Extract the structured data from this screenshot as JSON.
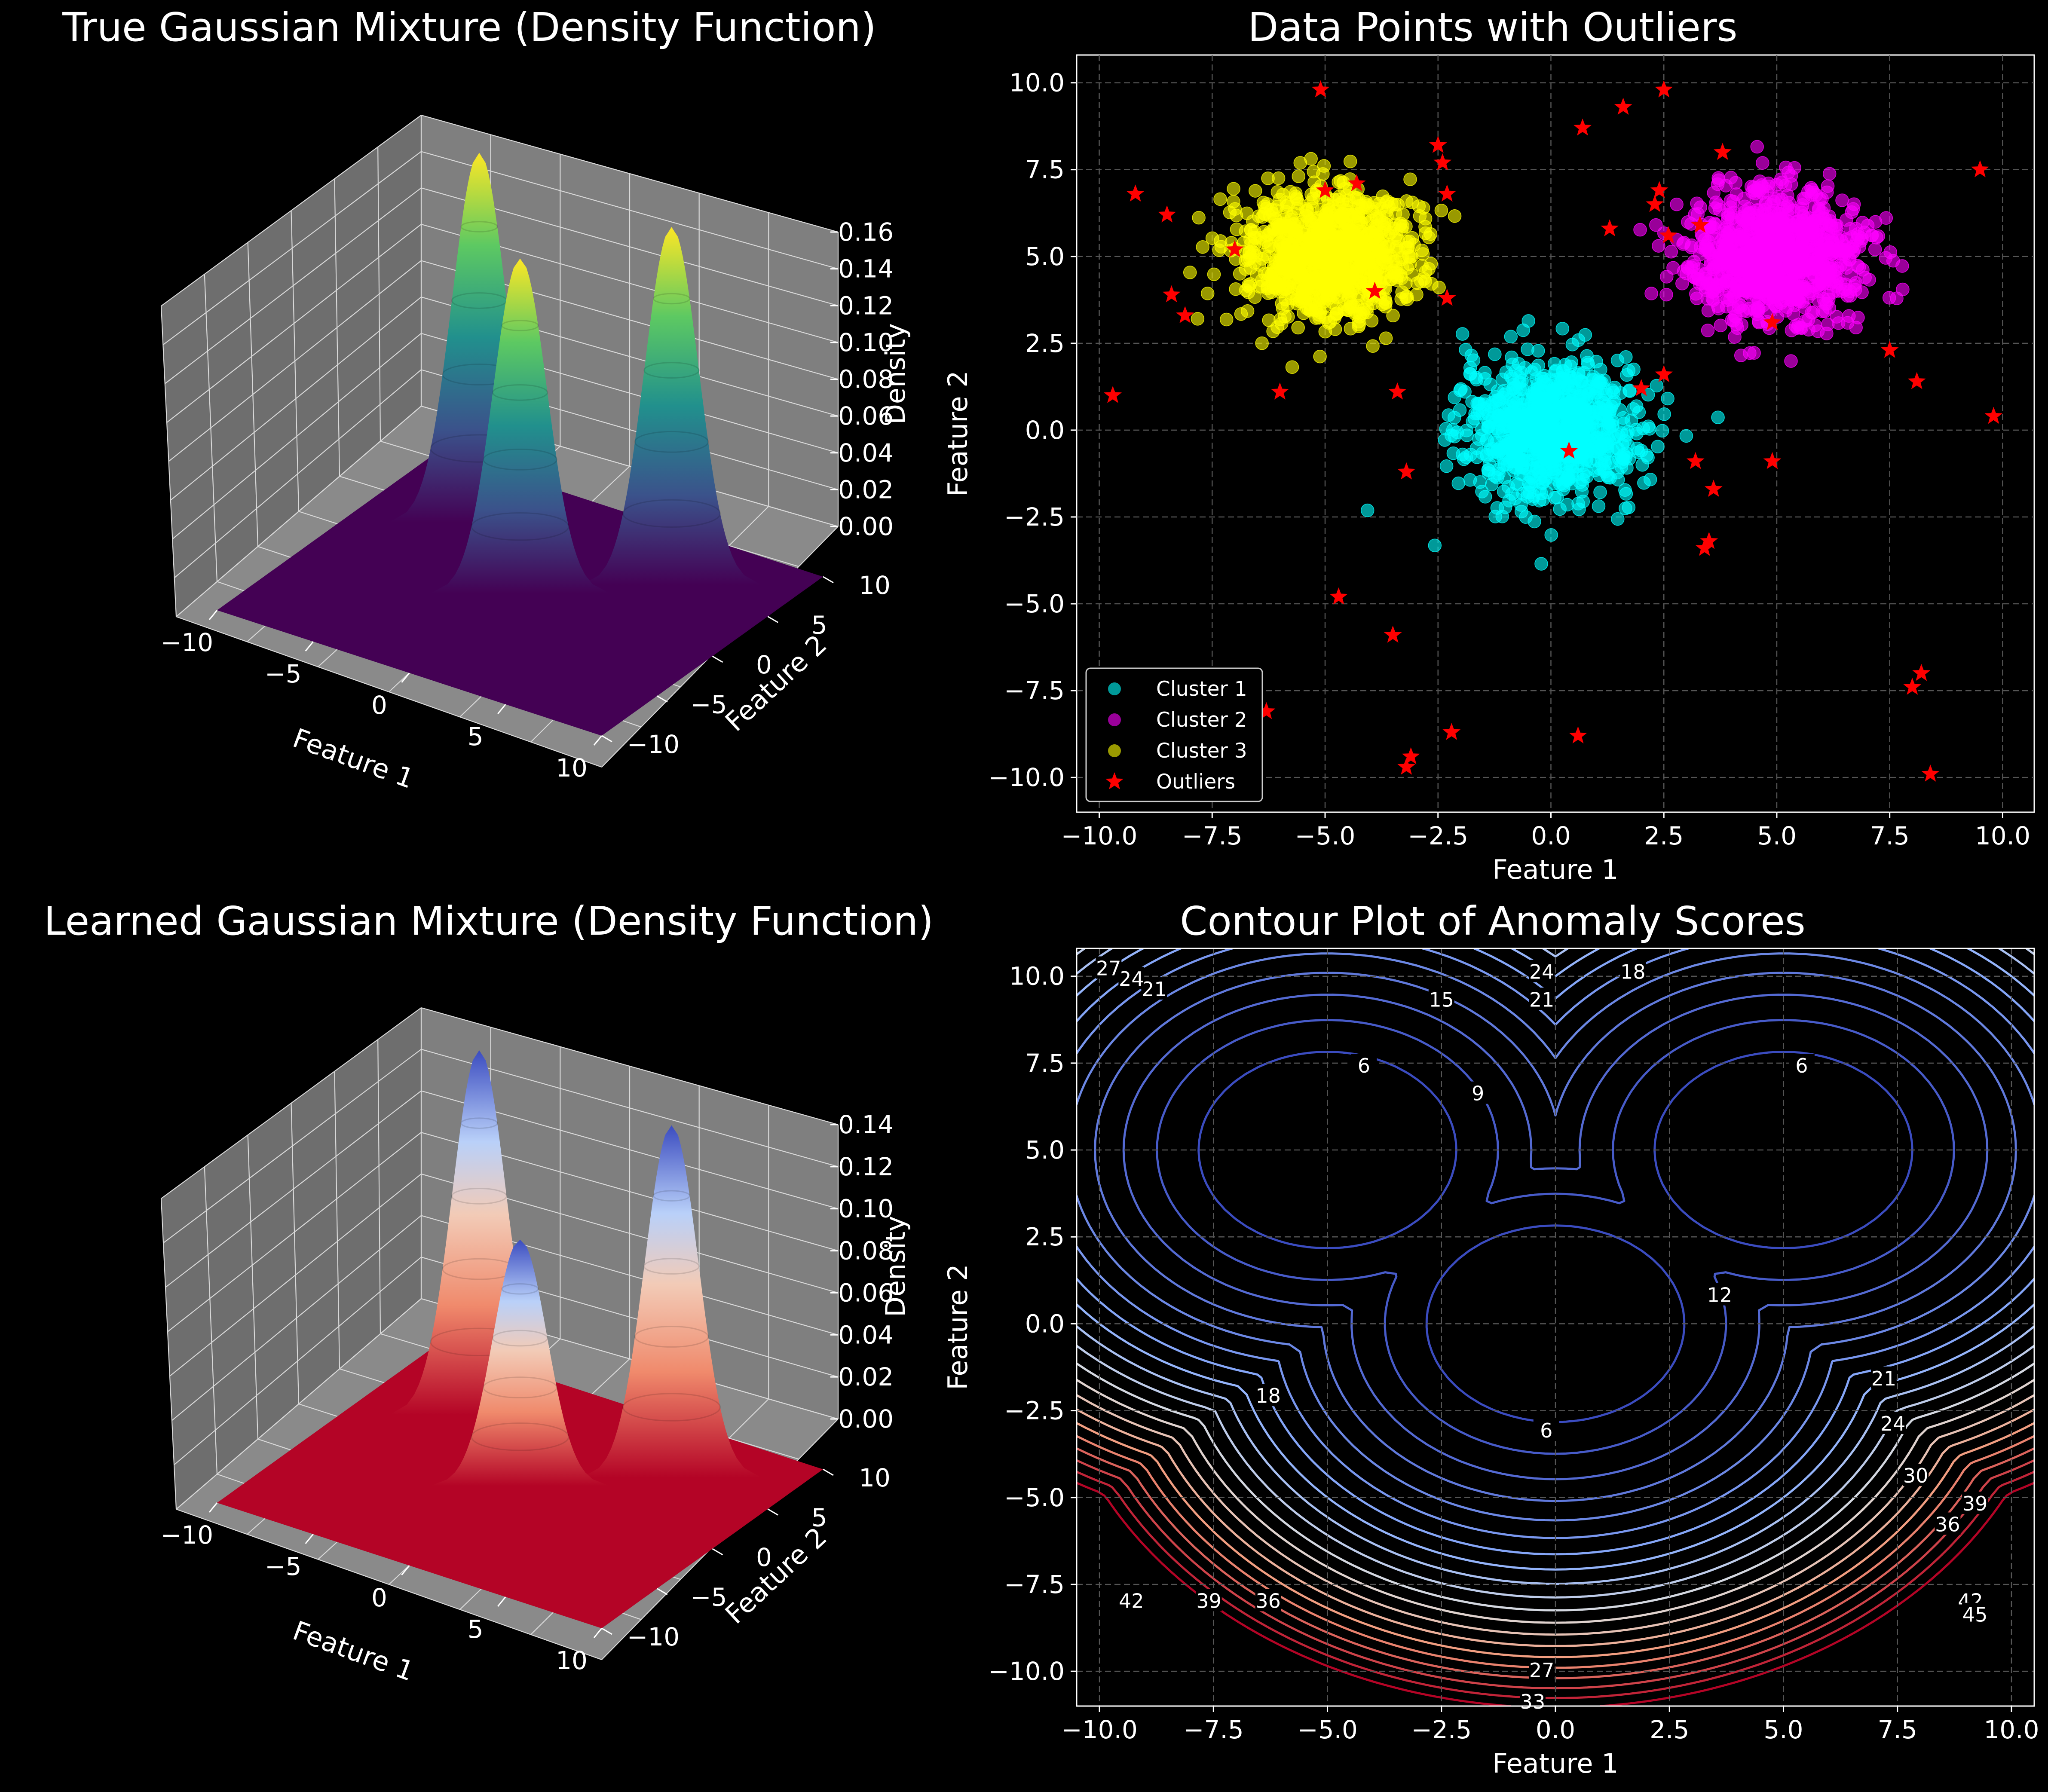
{
  "colors": {
    "background": "#000000",
    "text": "#ffffff",
    "pane": "#7f7f7f",
    "cluster1": "#00ffff",
    "cluster2": "#ff00ff",
    "cluster3": "#ffff00",
    "outliers": "#ff0000"
  },
  "chart_data": [
    {
      "type": "surface",
      "title": "True Gaussian Mixture (Density Function)",
      "xlabel": "Feature 1",
      "ylabel": "Feature 2",
      "zlabel": "Density",
      "xticks": [
        "−10",
        "−5",
        "0",
        "5",
        "10"
      ],
      "yticks": [
        "−10",
        "−5",
        "0",
        "5",
        "10"
      ],
      "zticks": [
        "0.00",
        "0.02",
        "0.04",
        "0.06",
        "0.08",
        "0.10",
        "0.12",
        "0.14",
        "0.16"
      ],
      "xlim": [
        -10,
        10
      ],
      "ylim": [
        -10,
        10
      ],
      "zlim": [
        0,
        0.16
      ],
      "colormap": "viridis",
      "peaks": [
        {
          "x": -5,
          "y": 5,
          "z": 0.16
        },
        {
          "x": 0,
          "y": 0,
          "z": 0.145
        },
        {
          "x": 5,
          "y": 5,
          "z": 0.155
        }
      ]
    },
    {
      "type": "scatter",
      "title": "Data Points with Outliers",
      "xlabel": "Feature 1",
      "ylabel": "Feature 2",
      "xlim": [
        -10.5,
        10.7
      ],
      "ylim": [
        -11,
        10.8
      ],
      "xticks": [
        "−10.0",
        "−7.5",
        "−5.0",
        "−2.5",
        "0.0",
        "2.5",
        "5.0",
        "7.5",
        "10.0"
      ],
      "yticks": [
        "−10.0",
        "−7.5",
        "−5.0",
        "−2.5",
        "0.0",
        "2.5",
        "5.0",
        "7.5",
        "10.0"
      ],
      "grid": true,
      "legend_position": "lower-left",
      "series": [
        {
          "name": "Cluster 1",
          "marker": "circle",
          "center": [
            0,
            0
          ],
          "spread": 0.95,
          "count": 1000
        },
        {
          "name": "Cluster 2",
          "marker": "circle",
          "center": [
            5,
            5
          ],
          "spread": 0.95,
          "count": 1000
        },
        {
          "name": "Cluster 3",
          "marker": "circle",
          "center": [
            -5,
            5
          ],
          "spread": 0.95,
          "count": 1000
        },
        {
          "name": "Outliers",
          "marker": "star",
          "points": [
            [
              -5.1,
              9.8
            ],
            [
              0.7,
              8.7
            ],
            [
              1.6,
              9.3
            ],
            [
              2.5,
              9.8
            ],
            [
              -2.5,
              8.2
            ],
            [
              -2.4,
              7.7
            ],
            [
              -4.3,
              7.1
            ],
            [
              -9.2,
              6.8
            ],
            [
              -8.5,
              6.2
            ],
            [
              -5.0,
              6.9
            ],
            [
              -7.0,
              5.2
            ],
            [
              -8.4,
              3.9
            ],
            [
              -8.1,
              3.3
            ],
            [
              -3.9,
              4.0
            ],
            [
              -2.3,
              3.8
            ],
            [
              -2.3,
              6.8
            ],
            [
              -6.0,
              1.1
            ],
            [
              -3.4,
              1.1
            ],
            [
              -9.7,
              1.0
            ],
            [
              3.8,
              8.0
            ],
            [
              2.3,
              6.5
            ],
            [
              2.4,
              6.9
            ],
            [
              1.3,
              5.8
            ],
            [
              3.3,
              5.9
            ],
            [
              2.6,
              5.6
            ],
            [
              9.5,
              7.5
            ],
            [
              4.9,
              3.1
            ],
            [
              7.5,
              2.3
            ],
            [
              8.1,
              1.4
            ],
            [
              9.8,
              0.4
            ],
            [
              2.0,
              1.2
            ],
            [
              2.5,
              1.6
            ],
            [
              0.4,
              -0.6
            ],
            [
              3.2,
              -0.9
            ],
            [
              3.6,
              -1.7
            ],
            [
              3.5,
              -3.2
            ],
            [
              3.4,
              -3.4
            ],
            [
              4.9,
              -0.9
            ],
            [
              -3.2,
              -1.2
            ],
            [
              -4.7,
              -4.8
            ],
            [
              -3.5,
              -5.9
            ],
            [
              -6.3,
              -8.1
            ],
            [
              -8.7,
              -8.0
            ],
            [
              -2.2,
              -8.7
            ],
            [
              -3.1,
              -9.4
            ],
            [
              -3.2,
              -9.7
            ],
            [
              0.6,
              -8.8
            ],
            [
              8.2,
              -7.0
            ],
            [
              8.0,
              -7.4
            ],
            [
              8.4,
              -9.9
            ]
          ]
        }
      ]
    },
    {
      "type": "surface",
      "title": "Learned Gaussian Mixture (Density Function)",
      "xlabel": "Feature 1",
      "ylabel": "Feature 2",
      "zlabel": "Density",
      "xticks": [
        "−10",
        "−5",
        "0",
        "5",
        "10"
      ],
      "yticks": [
        "−10",
        "−5",
        "0",
        "5",
        "10"
      ],
      "zticks": [
        "0.00",
        "0.02",
        "0.04",
        "0.06",
        "0.08",
        "0.10",
        "0.12",
        "0.14"
      ],
      "xlim": [
        -10,
        10
      ],
      "ylim": [
        -10,
        10
      ],
      "zlim": [
        0,
        0.15
      ],
      "colormap": "coolwarm_r",
      "peaks": [
        {
          "x": -5,
          "y": 5,
          "z": 0.148
        },
        {
          "x": 0,
          "y": 0,
          "z": 0.1
        },
        {
          "x": 5,
          "y": 5,
          "z": 0.143
        }
      ]
    },
    {
      "type": "contour",
      "title": "Contour Plot of Anomaly Scores",
      "xlabel": "Feature 1",
      "ylabel": "Feature 2",
      "xlim": [
        -10.5,
        10.5
      ],
      "ylim": [
        -11,
        10.8
      ],
      "xticks": [
        "−10.0",
        "−7.5",
        "−5.0",
        "−2.5",
        "0.0",
        "2.5",
        "5.0",
        "7.5",
        "10.0"
      ],
      "yticks": [
        "−10.0",
        "−7.5",
        "−5.0",
        "−2.5",
        "0.0",
        "2.5",
        "5.0",
        "7.5",
        "10.0"
      ],
      "grid": true,
      "colormap": "coolwarm",
      "levels": [
        6,
        9,
        12,
        15,
        18,
        21,
        24,
        27,
        30,
        33,
        36,
        39,
        42,
        45,
        48,
        51,
        54,
        57,
        60,
        63
      ],
      "centers": [
        [
          -5,
          5
        ],
        [
          0,
          0
        ],
        [
          5,
          5
        ]
      ],
      "contour_labels": [
        {
          "value": "6",
          "x": -4.2,
          "y": 7.4
        },
        {
          "value": "6",
          "x": 5.4,
          "y": 7.4
        },
        {
          "value": "6",
          "x": -0.2,
          "y": -3.1
        },
        {
          "value": "9",
          "x": -1.7,
          "y": 6.6
        },
        {
          "value": "12",
          "x": 3.6,
          "y": 0.8
        },
        {
          "value": "15",
          "x": -2.5,
          "y": 9.3
        },
        {
          "value": "18",
          "x": 1.7,
          "y": 10.1
        },
        {
          "value": "18",
          "x": -6.3,
          "y": -2.1
        },
        {
          "value": "21",
          "x": -8.8,
          "y": 9.6
        },
        {
          "value": "21",
          "x": -0.3,
          "y": 9.3
        },
        {
          "value": "21",
          "x": 7.2,
          "y": -1.6
        },
        {
          "value": "24",
          "x": -9.3,
          "y": 9.9
        },
        {
          "value": "24",
          "x": -0.3,
          "y": 10.1
        },
        {
          "value": "24",
          "x": 7.4,
          "y": -2.9
        },
        {
          "value": "27",
          "x": -9.8,
          "y": 10.2
        },
        {
          "value": "27",
          "x": -0.3,
          "y": -10.0
        },
        {
          "value": "30",
          "x": 7.9,
          "y": -4.4
        },
        {
          "value": "33",
          "x": -0.5,
          "y": -10.9
        },
        {
          "value": "36",
          "x": -6.3,
          "y": -8.0
        },
        {
          "value": "36",
          "x": 8.6,
          "y": -5.8
        },
        {
          "value": "39",
          "x": -7.6,
          "y": -8.0
        },
        {
          "value": "39",
          "x": 9.2,
          "y": -5.2
        },
        {
          "value": "42",
          "x": -9.3,
          "y": -8.0
        },
        {
          "value": "42",
          "x": 9.1,
          "y": -8.0
        },
        {
          "value": "45",
          "x": 9.2,
          "y": -8.4
        }
      ]
    }
  ]
}
